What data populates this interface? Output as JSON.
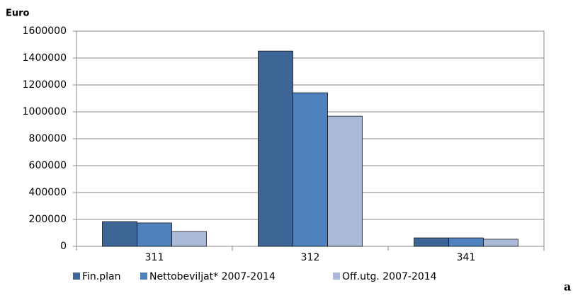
{
  "chart_data": {
    "type": "bar",
    "y_axis_label": "Euro",
    "annotation": "a",
    "categories": [
      "311",
      "312",
      "341"
    ],
    "series": [
      {
        "name": "Fin.plan",
        "color": "#3d6697",
        "values": [
          184000,
          1452000,
          63000
        ]
      },
      {
        "name": "Nettobeviljat* 2007-2014",
        "color": "#4f81bd",
        "values": [
          174000,
          1142000,
          63000
        ]
      },
      {
        "name": "Off.utg. 2007-2014",
        "color": "#aab9d8",
        "values": [
          110000,
          968000,
          53000
        ]
      }
    ],
    "ylim": [
      0,
      1600000
    ],
    "yticks": [
      0,
      200000,
      400000,
      600000,
      800000,
      1000000,
      1200000,
      1400000,
      1600000
    ],
    "grid": true,
    "legend": "bottom"
  }
}
